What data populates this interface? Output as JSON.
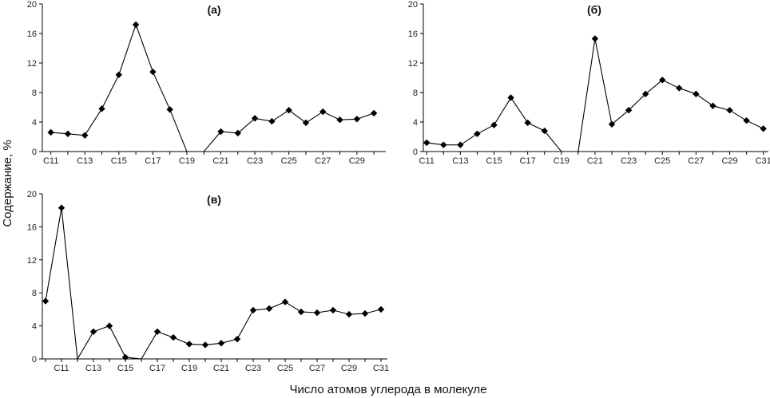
{
  "figure": {
    "ylabel": "Содержание, %",
    "xlabel": "Число атомов углерода в молекуле"
  },
  "chart_data": [
    {
      "type": "line",
      "title": "(а)",
      "x": [
        11,
        12,
        13,
        14,
        15,
        16,
        17,
        18,
        19,
        20,
        21,
        22,
        23,
        24,
        25,
        26,
        27,
        28,
        29,
        30
      ],
      "xticks": [
        "C11",
        "C13",
        "C15",
        "C17",
        "C19",
        "C21",
        "C23",
        "C25",
        "C27",
        "C29"
      ],
      "xtick_values": [
        11,
        13,
        15,
        17,
        19,
        21,
        23,
        25,
        27,
        29
      ],
      "ylim": [
        0,
        20
      ],
      "yticks": [
        0,
        4,
        8,
        12,
        16,
        20
      ],
      "xlim": [
        10.5,
        30.7
      ],
      "series": [
        {
          "values": [
            2.6,
            2.4,
            2.2,
            5.8,
            10.4,
            17.2,
            10.8,
            5.7,
            0,
            0,
            2.7,
            2.5,
            4.5,
            4.1,
            5.6,
            3.9,
            5.4,
            4.3,
            4.4,
            5.2
          ],
          "markers": [
            true,
            true,
            true,
            true,
            true,
            true,
            true,
            true,
            false,
            false,
            true,
            true,
            true,
            true,
            true,
            true,
            true,
            true,
            true,
            true
          ]
        }
      ]
    },
    {
      "type": "line",
      "title": "(б)",
      "x": [
        11,
        12,
        13,
        14,
        15,
        16,
        17,
        18,
        19,
        20,
        21,
        22,
        23,
        24,
        25,
        26,
        27,
        28,
        29,
        30,
        31
      ],
      "xticks": [
        "C11",
        "C13",
        "C15",
        "C17",
        "C19",
        "C21",
        "C23",
        "C25",
        "C27",
        "C29",
        "C31"
      ],
      "xtick_values": [
        11,
        13,
        15,
        17,
        19,
        21,
        23,
        25,
        27,
        29,
        31
      ],
      "ylim": [
        0,
        20
      ],
      "yticks": [
        0,
        4,
        8,
        12,
        16,
        20
      ],
      "xlim": [
        10.8,
        31.3
      ],
      "series": [
        {
          "values": [
            1.2,
            0.9,
            0.9,
            2.4,
            3.6,
            7.3,
            3.9,
            2.8,
            0,
            0,
            15.3,
            3.7,
            5.6,
            7.8,
            9.7,
            8.6,
            7.8,
            6.2,
            5.6,
            4.2,
            3.1
          ],
          "markers": [
            true,
            true,
            true,
            true,
            true,
            true,
            true,
            true,
            false,
            false,
            true,
            true,
            true,
            true,
            true,
            true,
            true,
            true,
            true,
            true,
            true
          ]
        }
      ]
    },
    {
      "type": "line",
      "title": "(в)",
      "x": [
        10,
        11,
        12,
        13,
        14,
        15,
        16,
        17,
        18,
        19,
        20,
        21,
        22,
        23,
        24,
        25,
        26,
        27,
        28,
        29,
        30,
        31
      ],
      "xticks": [
        "C11",
        "C13",
        "C15",
        "C17",
        "C19",
        "C21",
        "C23",
        "C25",
        "C27",
        "C29",
        "C31"
      ],
      "xtick_values": [
        11,
        13,
        15,
        17,
        19,
        21,
        23,
        25,
        27,
        29,
        31
      ],
      "ylim": [
        0,
        20
      ],
      "yticks": [
        0,
        4,
        8,
        12,
        16,
        20
      ],
      "xlim": [
        9.8,
        31.4
      ],
      "series": [
        {
          "values": [
            7.0,
            18.3,
            0,
            3.3,
            4.0,
            0.2,
            0,
            3.3,
            2.6,
            1.8,
            1.7,
            1.9,
            2.4,
            5.9,
            6.1,
            6.9,
            5.7,
            5.6,
            5.9,
            5.4,
            5.5,
            6.0
          ],
          "markers": [
            true,
            true,
            false,
            true,
            true,
            true,
            false,
            true,
            true,
            true,
            true,
            true,
            true,
            true,
            true,
            true,
            true,
            true,
            true,
            true,
            true,
            true
          ]
        }
      ]
    }
  ]
}
